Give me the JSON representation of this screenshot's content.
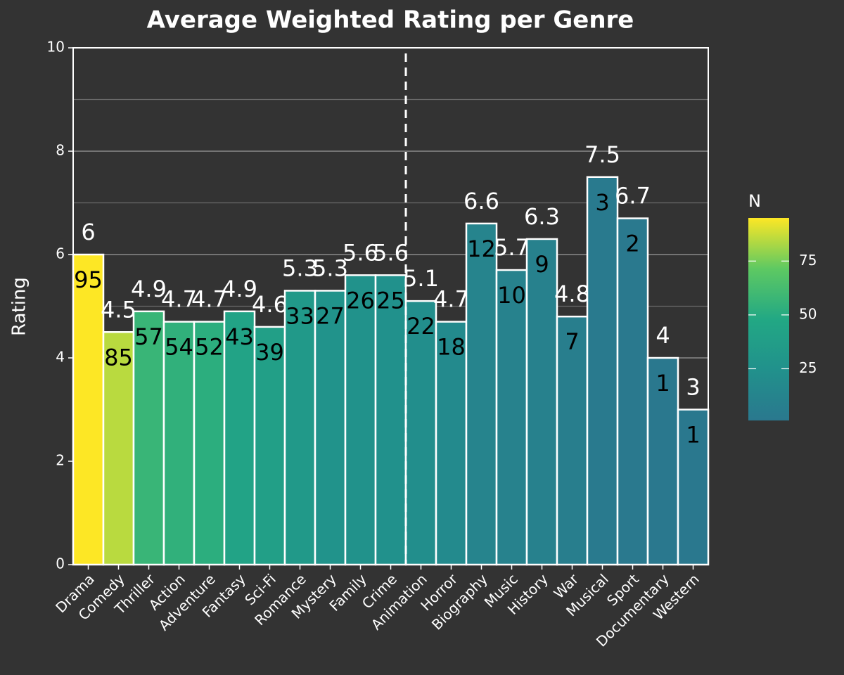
{
  "chart_data": {
    "type": "bar",
    "title": "Average Weighted Rating per Genre",
    "ylabel": "Rating",
    "categories": [
      "Drama",
      "Comedy",
      "Thriller",
      "Action",
      "Adventure",
      "Fantasy",
      "Sci-Fi",
      "Romance",
      "Mystery",
      "Family",
      "Crime",
      "Animation",
      "Horror",
      "Biography",
      "Music",
      "History",
      "War",
      "Musical",
      "Sport",
      "Documentary",
      "Western"
    ],
    "values": [
      6,
      4.5,
      4.9,
      4.7,
      4.7,
      4.9,
      4.6,
      5.3,
      5.3,
      5.6,
      5.6,
      5.1,
      4.7,
      6.6,
      5.7,
      6.3,
      4.8,
      7.5,
      6.7,
      4,
      3
    ],
    "n": [
      95,
      85,
      57,
      54,
      52,
      43,
      39,
      33,
      27,
      26,
      25,
      22,
      18,
      12,
      10,
      9,
      7,
      3,
      2,
      1,
      1
    ],
    "ylim": [
      0,
      10
    ],
    "yticks": [
      0,
      2,
      4,
      6,
      8,
      10
    ],
    "grid": true,
    "colorbar": {
      "title": "N",
      "lim": [
        1,
        95
      ],
      "ticks": [
        25,
        50,
        75
      ],
      "colors": [
        "#2a788e",
        "#21918c",
        "#22a884",
        "#5ec962",
        "#fde725"
      ]
    }
  }
}
